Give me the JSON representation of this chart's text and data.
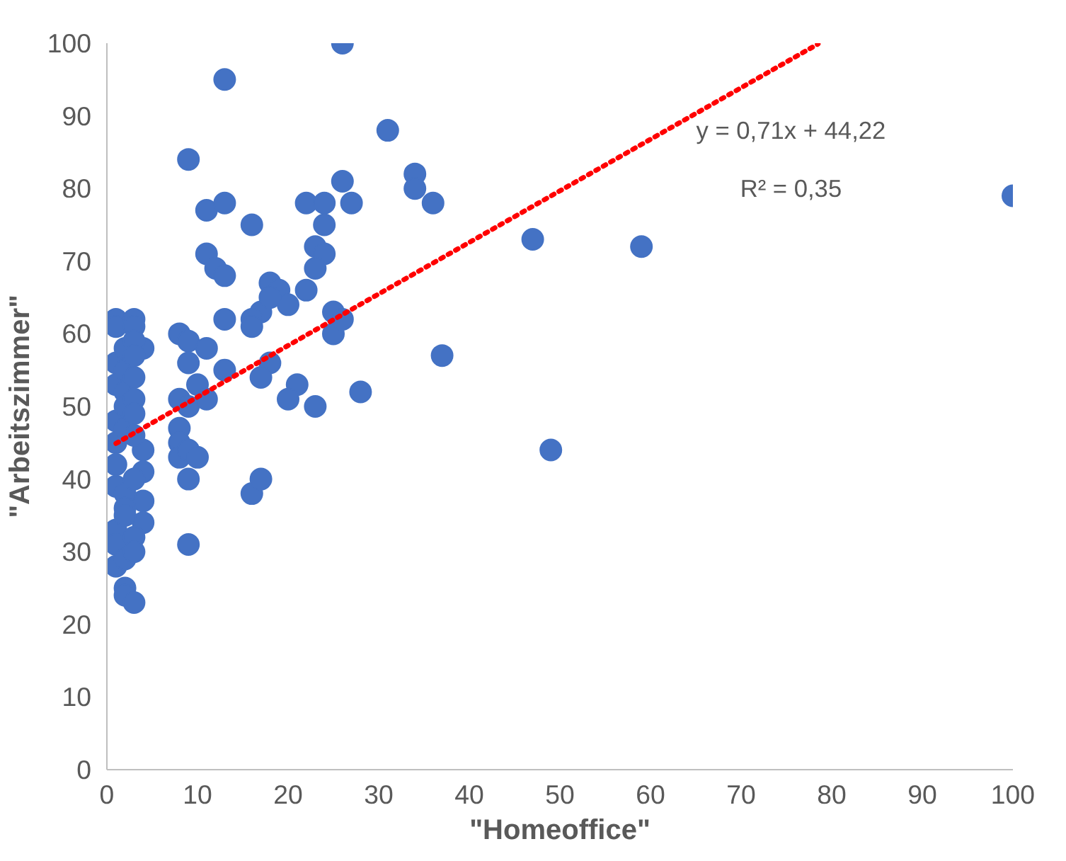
{
  "chart_data": {
    "type": "scatter",
    "xlabel": "\"Homeoffice\"",
    "ylabel": "\"Arbeitszimmer\"",
    "xlim": [
      0,
      100
    ],
    "xticks": [
      0,
      10,
      20,
      30,
      40,
      50,
      60,
      70,
      80,
      90,
      100
    ],
    "ylim": [
      0,
      100
    ],
    "yticks": [
      0,
      10,
      20,
      30,
      40,
      50,
      60,
      70,
      80,
      90,
      100
    ],
    "grid": false,
    "annotations": [
      "y = 0,71x + 44,22",
      "R² = 0,35"
    ],
    "series": [
      {
        "color": "#4472c4",
        "marker": "circle",
        "x": [
          9,
          13,
          26,
          31,
          34,
          34,
          36,
          47,
          59,
          100,
          49,
          37,
          28,
          23,
          21,
          20,
          11,
          13,
          11,
          12,
          13,
          16,
          22,
          24,
          26,
          27,
          24,
          23,
          24,
          23,
          18,
          19,
          20,
          17,
          18,
          16,
          16,
          13,
          25,
          25,
          26,
          22,
          18,
          17,
          13,
          8,
          9,
          11,
          9,
          8,
          9,
          10,
          11,
          8,
          8,
          8,
          9,
          10,
          9,
          9,
          16,
          17,
          4,
          4,
          4,
          4,
          4,
          1,
          1,
          1,
          1,
          1,
          1,
          1,
          1,
          1,
          1,
          1,
          2,
          2,
          2,
          2,
          2,
          2,
          2,
          2,
          2,
          2,
          2,
          3,
          3,
          3,
          3,
          3,
          3,
          3,
          3,
          3,
          3,
          3,
          3
        ],
        "values": [
          84,
          95,
          100,
          88,
          82,
          80,
          78,
          73,
          72,
          79,
          44,
          57,
          52,
          50,
          53,
          51,
          77,
          78,
          71,
          69,
          68,
          75,
          78,
          78,
          81,
          78,
          75,
          72,
          71,
          69,
          67,
          66,
          64,
          63,
          65,
          62,
          61,
          62,
          63,
          60,
          62,
          66,
          56,
          54,
          55,
          60,
          59,
          58,
          56,
          51,
          50,
          53,
          51,
          47,
          45,
          43,
          44,
          43,
          40,
          31,
          38,
          40,
          58,
          44,
          41,
          37,
          34,
          62,
          61,
          56,
          53,
          48,
          45,
          42,
          39,
          33,
          31,
          28,
          58,
          55,
          52,
          50,
          47,
          38,
          36,
          35,
          29,
          25,
          24,
          62,
          61,
          59,
          57,
          54,
          51,
          49,
          46,
          40,
          32,
          30,
          23
        ]
      },
      {
        "type": "line",
        "color": "#ff0000",
        "line_style": "dotted",
        "marker": "none",
        "x": [
          1,
          78.5
        ],
        "values": [
          44.9,
          99.9
        ]
      }
    ]
  }
}
